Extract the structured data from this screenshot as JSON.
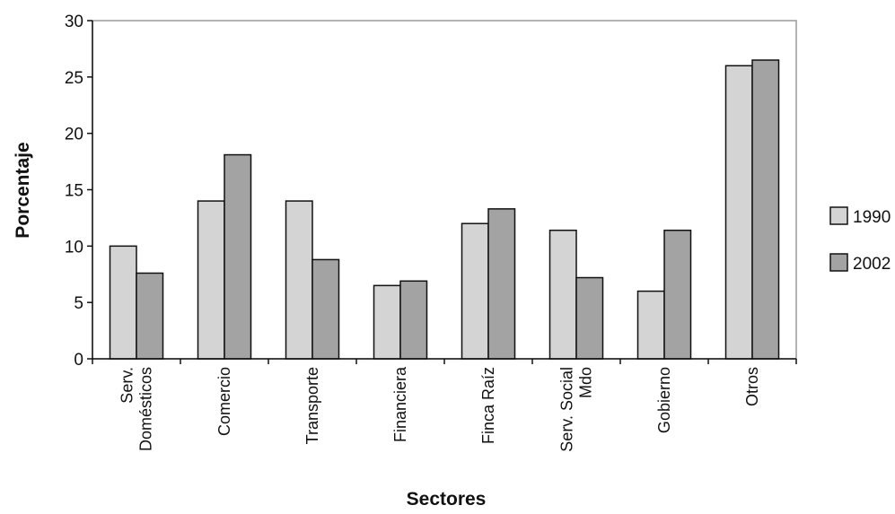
{
  "chart_data": {
    "type": "bar",
    "title": "",
    "xlabel": "Sectores",
    "ylabel": "Porcentaje",
    "ylim": [
      0,
      30
    ],
    "yticks": [
      0,
      5,
      10,
      15,
      20,
      25,
      30
    ],
    "grid": false,
    "legend_position": "right",
    "categories": [
      [
        "Serv.",
        "Domésticos"
      ],
      [
        "Comercio"
      ],
      [
        "Transporte"
      ],
      [
        "Financiera"
      ],
      [
        "Finca Raíz"
      ],
      [
        "Serv. Social",
        "Mdo"
      ],
      [
        "Gobierno"
      ],
      [
        "Otros"
      ]
    ],
    "series": [
      {
        "name": "1990",
        "color": "#d4d4d4",
        "values": [
          10.0,
          14.0,
          14.0,
          6.5,
          12.0,
          11.4,
          6.0,
          26.0
        ]
      },
      {
        "name": "2002",
        "color": "#a3a3a3",
        "values": [
          7.6,
          18.1,
          8.8,
          6.9,
          13.3,
          7.2,
          11.4,
          26.5
        ]
      }
    ]
  }
}
